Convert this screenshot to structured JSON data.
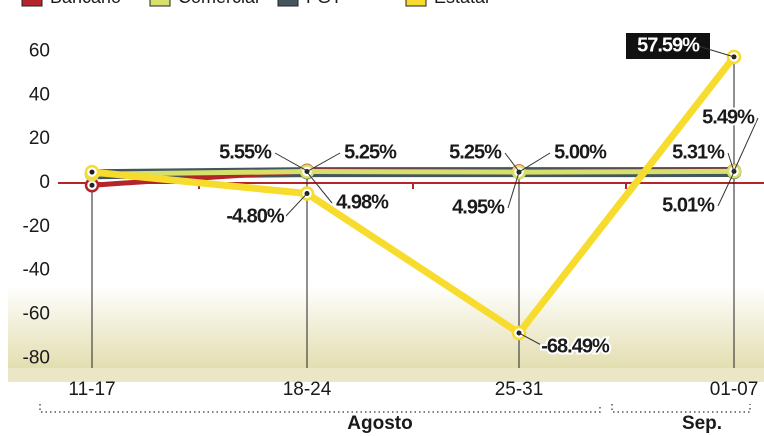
{
  "chart_data": {
    "type": "line",
    "categories": [
      "11-17",
      "18-24",
      "25-31",
      "01-07"
    ],
    "groups": [
      {
        "label": "Agosto"
      },
      {
        "label": "Sep."
      }
    ],
    "series": [
      {
        "name": "Bancario",
        "color": "#b5242a",
        "values": [
          -1,
          5.55,
          5.25,
          5.49
        ],
        "value_labels": [
          null,
          "5.55%",
          "5.25%",
          "5.49%"
        ]
      },
      {
        "name": "Comercial",
        "color": "#d6e06b",
        "values": [
          4,
          5.25,
          5.0,
          5.31
        ],
        "value_labels": [
          null,
          "5.25%",
          "5.00%",
          "5.31%"
        ]
      },
      {
        "name": "FGT",
        "color": "#44555e",
        "values": [
          4,
          4.98,
          4.95,
          5.01
        ],
        "value_labels": [
          null,
          "4.98%",
          "4.95%",
          "5.01%"
        ]
      },
      {
        "name": "Estatal",
        "color": "#f7dc2e",
        "values": [
          5,
          -4.8,
          -68.49,
          57.59
        ],
        "value_labels": [
          null,
          "-4.80%",
          "-68.49%",
          "57.59%"
        ]
      }
    ],
    "ylim": [
      -84,
      70
    ],
    "yticks": [
      60,
      40,
      20,
      0,
      -20,
      -40,
      -60,
      -80
    ],
    "grid": false
  }
}
